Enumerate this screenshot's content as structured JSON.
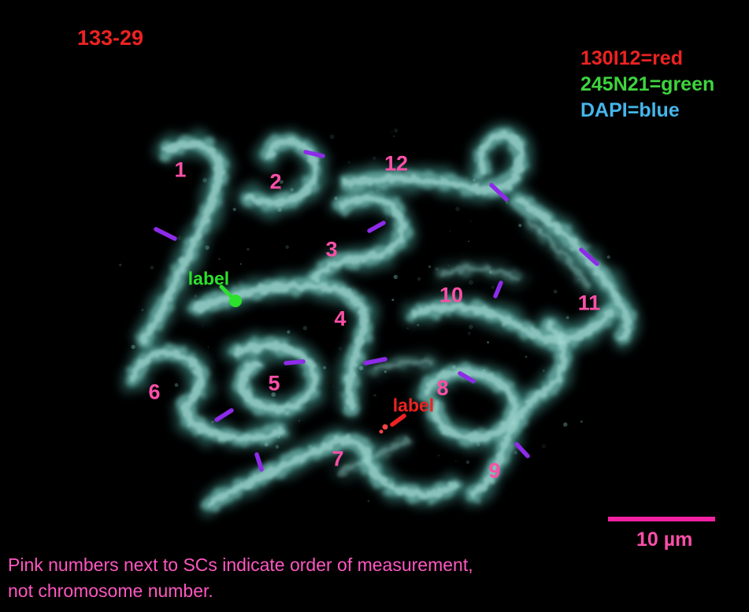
{
  "header": {
    "specimen_id": "133-29"
  },
  "legend": {
    "items": [
      {
        "label": "130I12=red",
        "color": "#ee2222"
      },
      {
        "label": "245N21=green",
        "color": "#3ed43e"
      },
      {
        "label": "DAPI=blue",
        "color": "#45b6ea"
      }
    ]
  },
  "sc_numbers": [
    {
      "label": "1"
    },
    {
      "label": "2"
    },
    {
      "label": "3"
    },
    {
      "label": "4"
    },
    {
      "label": "5"
    },
    {
      "label": "6"
    },
    {
      "label": "7"
    },
    {
      "label": "8"
    },
    {
      "label": "9"
    },
    {
      "label": "10"
    },
    {
      "label": "11"
    },
    {
      "label": "12"
    }
  ],
  "annotations": {
    "green_probe_label": "label",
    "red_probe_label": "label"
  },
  "scale_bar": {
    "label": "10 µm"
  },
  "caption": {
    "line1": "Pink numbers next to SCs indicate order of measurement,",
    "line2": "not chromosome number."
  },
  "colors": {
    "background": "#000000",
    "chromosome_cyan": "#a7dcd5",
    "number_pink": "#fb4fa8",
    "scale_bar_pink": "#f322a2",
    "tick_purple": "#8d2be8",
    "probe_red": "#ee2222",
    "probe_green": "#2ce02c",
    "dapi_blue_text": "#45b6ea"
  }
}
